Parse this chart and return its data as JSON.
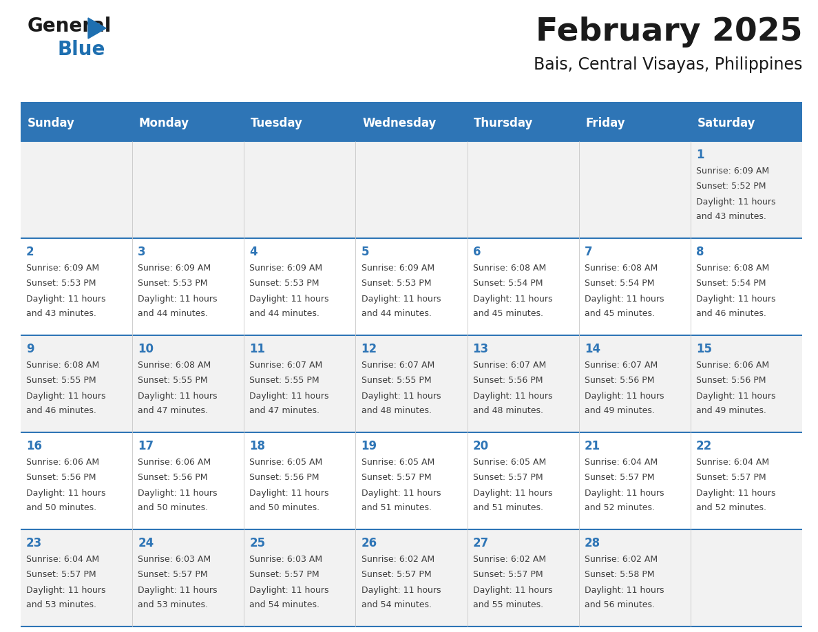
{
  "title": "February 2025",
  "subtitle": "Bais, Central Visayas, Philippines",
  "header_bg": "#2E75B6",
  "header_text_color": "#FFFFFF",
  "cell_bg_week0": "#F2F2F2",
  "cell_bg_week1": "#FFFFFF",
  "cell_bg_week2": "#F2F2F2",
  "cell_bg_week3": "#FFFFFF",
  "cell_bg_week4": "#F2F2F2",
  "day_number_color": "#2E75B6",
  "info_text_color": "#3D3D3D",
  "border_color": "#2E75B6",
  "days_of_week": [
    "Sunday",
    "Monday",
    "Tuesday",
    "Wednesday",
    "Thursday",
    "Friday",
    "Saturday"
  ],
  "weeks": [
    [
      {
        "day": null,
        "sunrise": null,
        "sunset": null,
        "daylight_line1": null,
        "daylight_line2": null
      },
      {
        "day": null,
        "sunrise": null,
        "sunset": null,
        "daylight_line1": null,
        "daylight_line2": null
      },
      {
        "day": null,
        "sunrise": null,
        "sunset": null,
        "daylight_line1": null,
        "daylight_line2": null
      },
      {
        "day": null,
        "sunrise": null,
        "sunset": null,
        "daylight_line1": null,
        "daylight_line2": null
      },
      {
        "day": null,
        "sunrise": null,
        "sunset": null,
        "daylight_line1": null,
        "daylight_line2": null
      },
      {
        "day": null,
        "sunrise": null,
        "sunset": null,
        "daylight_line1": null,
        "daylight_line2": null
      },
      {
        "day": 1,
        "sunrise": "Sunrise: 6:09 AM",
        "sunset": "Sunset: 5:52 PM",
        "daylight_line1": "Daylight: 11 hours",
        "daylight_line2": "and 43 minutes."
      }
    ],
    [
      {
        "day": 2,
        "sunrise": "Sunrise: 6:09 AM",
        "sunset": "Sunset: 5:53 PM",
        "daylight_line1": "Daylight: 11 hours",
        "daylight_line2": "and 43 minutes."
      },
      {
        "day": 3,
        "sunrise": "Sunrise: 6:09 AM",
        "sunset": "Sunset: 5:53 PM",
        "daylight_line1": "Daylight: 11 hours",
        "daylight_line2": "and 44 minutes."
      },
      {
        "day": 4,
        "sunrise": "Sunrise: 6:09 AM",
        "sunset": "Sunset: 5:53 PM",
        "daylight_line1": "Daylight: 11 hours",
        "daylight_line2": "and 44 minutes."
      },
      {
        "day": 5,
        "sunrise": "Sunrise: 6:09 AM",
        "sunset": "Sunset: 5:53 PM",
        "daylight_line1": "Daylight: 11 hours",
        "daylight_line2": "and 44 minutes."
      },
      {
        "day": 6,
        "sunrise": "Sunrise: 6:08 AM",
        "sunset": "Sunset: 5:54 PM",
        "daylight_line1": "Daylight: 11 hours",
        "daylight_line2": "and 45 minutes."
      },
      {
        "day": 7,
        "sunrise": "Sunrise: 6:08 AM",
        "sunset": "Sunset: 5:54 PM",
        "daylight_line1": "Daylight: 11 hours",
        "daylight_line2": "and 45 minutes."
      },
      {
        "day": 8,
        "sunrise": "Sunrise: 6:08 AM",
        "sunset": "Sunset: 5:54 PM",
        "daylight_line1": "Daylight: 11 hours",
        "daylight_line2": "and 46 minutes."
      }
    ],
    [
      {
        "day": 9,
        "sunrise": "Sunrise: 6:08 AM",
        "sunset": "Sunset: 5:55 PM",
        "daylight_line1": "Daylight: 11 hours",
        "daylight_line2": "and 46 minutes."
      },
      {
        "day": 10,
        "sunrise": "Sunrise: 6:08 AM",
        "sunset": "Sunset: 5:55 PM",
        "daylight_line1": "Daylight: 11 hours",
        "daylight_line2": "and 47 minutes."
      },
      {
        "day": 11,
        "sunrise": "Sunrise: 6:07 AM",
        "sunset": "Sunset: 5:55 PM",
        "daylight_line1": "Daylight: 11 hours",
        "daylight_line2": "and 47 minutes."
      },
      {
        "day": 12,
        "sunrise": "Sunrise: 6:07 AM",
        "sunset": "Sunset: 5:55 PM",
        "daylight_line1": "Daylight: 11 hours",
        "daylight_line2": "and 48 minutes."
      },
      {
        "day": 13,
        "sunrise": "Sunrise: 6:07 AM",
        "sunset": "Sunset: 5:56 PM",
        "daylight_line1": "Daylight: 11 hours",
        "daylight_line2": "and 48 minutes."
      },
      {
        "day": 14,
        "sunrise": "Sunrise: 6:07 AM",
        "sunset": "Sunset: 5:56 PM",
        "daylight_line1": "Daylight: 11 hours",
        "daylight_line2": "and 49 minutes."
      },
      {
        "day": 15,
        "sunrise": "Sunrise: 6:06 AM",
        "sunset": "Sunset: 5:56 PM",
        "daylight_line1": "Daylight: 11 hours",
        "daylight_line2": "and 49 minutes."
      }
    ],
    [
      {
        "day": 16,
        "sunrise": "Sunrise: 6:06 AM",
        "sunset": "Sunset: 5:56 PM",
        "daylight_line1": "Daylight: 11 hours",
        "daylight_line2": "and 50 minutes."
      },
      {
        "day": 17,
        "sunrise": "Sunrise: 6:06 AM",
        "sunset": "Sunset: 5:56 PM",
        "daylight_line1": "Daylight: 11 hours",
        "daylight_line2": "and 50 minutes."
      },
      {
        "day": 18,
        "sunrise": "Sunrise: 6:05 AM",
        "sunset": "Sunset: 5:56 PM",
        "daylight_line1": "Daylight: 11 hours",
        "daylight_line2": "and 50 minutes."
      },
      {
        "day": 19,
        "sunrise": "Sunrise: 6:05 AM",
        "sunset": "Sunset: 5:57 PM",
        "daylight_line1": "Daylight: 11 hours",
        "daylight_line2": "and 51 minutes."
      },
      {
        "day": 20,
        "sunrise": "Sunrise: 6:05 AM",
        "sunset": "Sunset: 5:57 PM",
        "daylight_line1": "Daylight: 11 hours",
        "daylight_line2": "and 51 minutes."
      },
      {
        "day": 21,
        "sunrise": "Sunrise: 6:04 AM",
        "sunset": "Sunset: 5:57 PM",
        "daylight_line1": "Daylight: 11 hours",
        "daylight_line2": "and 52 minutes."
      },
      {
        "day": 22,
        "sunrise": "Sunrise: 6:04 AM",
        "sunset": "Sunset: 5:57 PM",
        "daylight_line1": "Daylight: 11 hours",
        "daylight_line2": "and 52 minutes."
      }
    ],
    [
      {
        "day": 23,
        "sunrise": "Sunrise: 6:04 AM",
        "sunset": "Sunset: 5:57 PM",
        "daylight_line1": "Daylight: 11 hours",
        "daylight_line2": "and 53 minutes."
      },
      {
        "day": 24,
        "sunrise": "Sunrise: 6:03 AM",
        "sunset": "Sunset: 5:57 PM",
        "daylight_line1": "Daylight: 11 hours",
        "daylight_line2": "and 53 minutes."
      },
      {
        "day": 25,
        "sunrise": "Sunrise: 6:03 AM",
        "sunset": "Sunset: 5:57 PM",
        "daylight_line1": "Daylight: 11 hours",
        "daylight_line2": "and 54 minutes."
      },
      {
        "day": 26,
        "sunrise": "Sunrise: 6:02 AM",
        "sunset": "Sunset: 5:57 PM",
        "daylight_line1": "Daylight: 11 hours",
        "daylight_line2": "and 54 minutes."
      },
      {
        "day": 27,
        "sunrise": "Sunrise: 6:02 AM",
        "sunset": "Sunset: 5:57 PM",
        "daylight_line1": "Daylight: 11 hours",
        "daylight_line2": "and 55 minutes."
      },
      {
        "day": 28,
        "sunrise": "Sunrise: 6:02 AM",
        "sunset": "Sunset: 5:58 PM",
        "daylight_line1": "Daylight: 11 hours",
        "daylight_line2": "and 56 minutes."
      },
      {
        "day": null,
        "sunrise": null,
        "sunset": null,
        "daylight_line1": null,
        "daylight_line2": null
      }
    ]
  ],
  "logo_color_general": "#1a1a1a",
  "logo_color_blue": "#1E6FB0",
  "title_fontsize": 34,
  "subtitle_fontsize": 17,
  "header_fontsize": 12,
  "day_num_fontsize": 12,
  "info_fontsize": 9.0,
  "bg_color": "#FFFFFF"
}
